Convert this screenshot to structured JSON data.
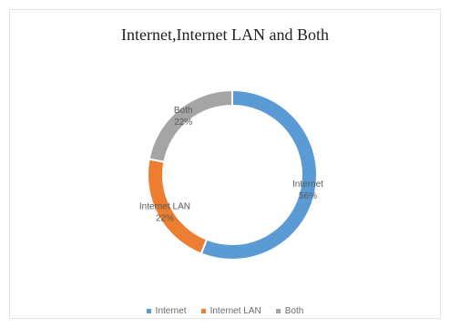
{
  "chart_data": {
    "type": "pie",
    "title": "Internet,Internet LAN  and Both",
    "categories": [
      "Internet",
      "Internet LAN",
      "Both"
    ],
    "values": [
      56,
      22,
      22
    ],
    "labels": [
      "56%",
      "22%",
      "22%"
    ],
    "colors": [
      "#5b9bd5",
      "#ed7d31",
      "#a5a5a5"
    ],
    "legend": "bottom",
    "donut": true
  }
}
